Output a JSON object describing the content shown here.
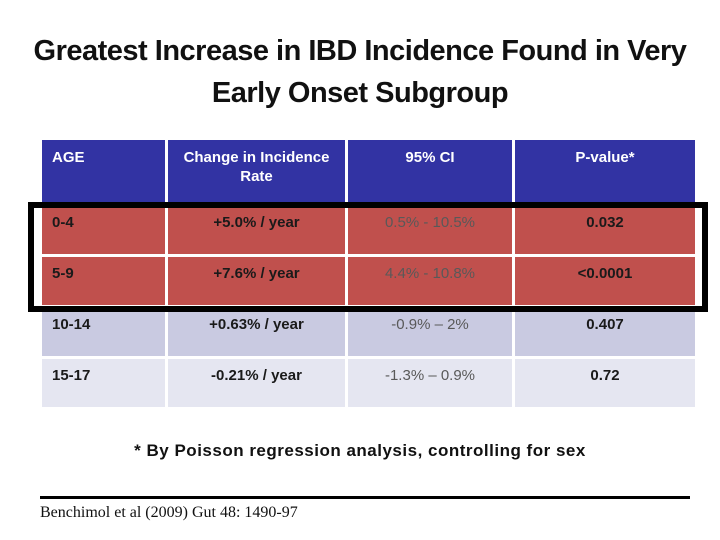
{
  "slide": {
    "title_line1": "Greatest Increase in IBD Incidence Found in Very",
    "title_line2": "Early Onset Subgroup",
    "footnote": "* By Poisson regression analysis, controlling for sex",
    "citation": "Benchimol et al (2009) Gut 48: 1490-97"
  },
  "chart_data": {
    "type": "table",
    "columns": [
      "AGE",
      "Change in Incidence Rate",
      "95% CI",
      "P-value*"
    ],
    "rows": [
      [
        "0-4",
        "+5.0% / year",
        "0.5% - 10.5%",
        "0.032"
      ],
      [
        "5-9",
        "+7.6% / year",
        "4.4% - 10.8%",
        "<0.0001"
      ],
      [
        "10-14",
        "+0.63% / year",
        "-0.9% – 2%",
        "0.407"
      ],
      [
        "15-17",
        "-0.21% / year",
        "-1.3% – 0.9%",
        "0.72"
      ]
    ],
    "highlighted_rows": [
      0,
      1
    ]
  },
  "colors": {
    "header_bg": "#3233A3",
    "header_text": "#ffffff",
    "highlight_row_bg": "#C0504D",
    "row_alt1_bg": "#C9CAE1",
    "row_alt2_bg": "#E5E6F1",
    "ci_text": "#595959",
    "highlight_border": "#000000"
  }
}
